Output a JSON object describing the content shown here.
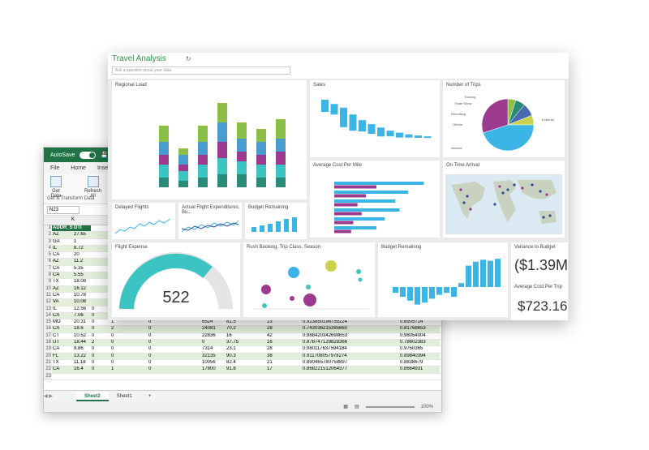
{
  "excel": {
    "autosave_label": "AutoSave",
    "toggle_label": "On",
    "tabs": [
      "File",
      "Home",
      "Insert"
    ],
    "ribbon": {
      "get_data": "Get\nData",
      "refresh_all": "Refresh\nAll",
      "group_label": "Get & Transform Data"
    },
    "namebox": "N23",
    "col_headers": [
      "K"
    ],
    "header_row": {
      "rn": "1",
      "cells": [
        "ADDR_STATE",
        "DTI"
      ]
    },
    "rows": [
      {
        "rn": "2",
        "cells": [
          "AZ",
          "27.65",
          "",
          "",
          "",
          "",
          "",
          "",
          ""
        ]
      },
      {
        "rn": "3",
        "cells": [
          "GA",
          "1",
          "",
          "",
          "",
          "",
          "",
          "",
          ""
        ]
      },
      {
        "rn": "4",
        "cells": [
          "IL",
          "8.72",
          "",
          "",
          "",
          "",
          "",
          "",
          ""
        ]
      },
      {
        "rn": "5",
        "cells": [
          "CA",
          "20",
          "",
          "",
          "",
          "",
          "",
          "",
          ""
        ]
      },
      {
        "rn": "6",
        "cells": [
          "AZ",
          "11.2",
          "",
          "",
          "",
          "",
          "",
          "",
          ""
        ]
      },
      {
        "rn": "7",
        "cells": [
          "CA",
          "5.35",
          "",
          "",
          "",
          "",
          "",
          "",
          ""
        ]
      },
      {
        "rn": "8",
        "cells": [
          "CA",
          "5.55",
          "",
          "",
          "",
          "",
          "",
          "",
          ""
        ]
      },
      {
        "rn": "9",
        "cells": [
          "TX",
          "18.08",
          "",
          "",
          "",
          "",
          "",
          "",
          ""
        ]
      },
      {
        "rn": "10",
        "cells": [
          "AZ",
          "16.12",
          "",
          "",
          "",
          "",
          "",
          "",
          ""
        ]
      },
      {
        "rn": "11",
        "cells": [
          "CA",
          "10.78",
          "",
          "",
          "",
          "",
          "",
          "",
          ""
        ]
      },
      {
        "rn": "12",
        "cells": [
          "VA",
          "10.08",
          "",
          "",
          "",
          "",
          "",
          "",
          ""
        ]
      },
      {
        "rn": "13",
        "cells": [
          "IL",
          "12.56",
          "0",
          "2",
          "0",
          "7523",
          "65.1",
          "11",
          "0.835299816036672"
        ]
      },
      {
        "rn": "14",
        "cells": [
          "CA",
          "7.06",
          "0",
          "2",
          "0",
          "12997",
          "53.3",
          "29",
          "0.921813084422236"
        ]
      },
      {
        "rn": "15",
        "cells": [
          "MO",
          "20.31",
          "0",
          "1",
          "0",
          "6524",
          "81.5",
          "23",
          "0.923850196759224"
        ]
      },
      {
        "rn": "16",
        "cells": [
          "CA",
          "18.6",
          "0",
          "2",
          "0",
          "24081",
          "70.2",
          "28",
          "0.743036215395660"
        ]
      },
      {
        "rn": "17",
        "cells": [
          "CT",
          "10.52",
          "0",
          "0",
          "0",
          "22836",
          "16",
          "42",
          "0.988420342698653"
        ]
      },
      {
        "rn": "18",
        "cells": [
          "UT",
          "18.44",
          "2",
          "0",
          "0",
          "0",
          "37.75",
          "16",
          "0.878747129828366"
        ]
      },
      {
        "rn": "19",
        "cells": [
          "CA",
          "9.86",
          "0",
          "0",
          "0",
          "7314",
          "23.1",
          "28",
          "0.980117637594184"
        ]
      },
      {
        "rn": "20",
        "cells": [
          "FL",
          "13.22",
          "0",
          "0",
          "0",
          "32135",
          "90.3",
          "38",
          "0.911708057978274"
        ]
      },
      {
        "rn": "21",
        "cells": [
          "TX",
          "11.18",
          "0",
          "0",
          "0",
          "10056",
          "82.4",
          "21",
          "0.890465780758897"
        ]
      },
      {
        "rn": "22",
        "cells": [
          "CA",
          "16.4",
          "0",
          "1",
          "0",
          "17800",
          "91.8",
          "17",
          "0.868221512064377"
        ]
      },
      {
        "rn": "23",
        "cells": [
          "",
          "",
          "",
          "",
          "",
          "",
          "",
          "",
          ""
        ]
      }
    ],
    "extra_col": [
      "0.84910877",
      "0.9658826",
      "0.6905724",
      "0.81768653",
      "0.98054004",
      "0.78602383",
      "0.9750365",
      "0.89840394",
      "0.8838679",
      "0.8664931"
    ],
    "sheets": [
      "Sheet2",
      "Sheet1"
    ],
    "add_sheet": "+",
    "zoom": "100%"
  },
  "pbi": {
    "title": "Travel Analysis",
    "qa_placeholder": "Ask a question about your data",
    "tiles": {
      "regional_load": {
        "title": "Regional Load"
      },
      "sales": {
        "title": "Sales"
      },
      "trips": {
        "title": "Number of Trips",
        "labels": [
          "Training",
          "Trade Show",
          "Recruiting",
          "Others",
          "External",
          "Internal"
        ]
      },
      "cost_mile": {
        "title": "Average Cost Per Mile"
      },
      "on_time": {
        "title": "On Time Arrival"
      },
      "delayed": {
        "title": "Delayed Flights"
      },
      "actual_flight": {
        "title": "Actual Flight Expenditures, Bu..."
      },
      "budget_small": {
        "title": "Budget Remaining"
      },
      "flight_expense": {
        "title": "Flight Expense",
        "value": "522"
      },
      "rush": {
        "title": "Rush Booking, Trip Class, Season"
      },
      "budget_big": {
        "title": "Budget Remaining"
      },
      "variance": {
        "title": "Variance to Budget",
        "value": "($1.39M)"
      },
      "avg_trip": {
        "title": "Average Cost Per Trip",
        "value": "$723.16"
      }
    },
    "colors": {
      "teal": "#3cc4c2",
      "purple": "#9b3a8e",
      "green": "#8bbf48",
      "dark_teal": "#2a8a78",
      "blue": "#3ab5e6",
      "brand": "#217346"
    }
  },
  "chart_data": [
    {
      "type": "bar",
      "title": "Regional Load",
      "categories": [
        "1",
        "2",
        "3",
        "4",
        "5",
        "6",
        "7"
      ],
      "series": [
        {
          "values": [
            3,
            2,
            3,
            4,
            4,
            3,
            3
          ]
        },
        {
          "values": [
            4,
            3,
            4,
            5,
            4,
            4,
            4
          ]
        },
        {
          "values": [
            3,
            2,
            3,
            5,
            3,
            3,
            4
          ]
        },
        {
          "values": [
            4,
            3,
            4,
            6,
            4,
            4,
            4
          ]
        },
        {
          "values": [
            5,
            2,
            5,
            6,
            5,
            4,
            6
          ]
        }
      ]
    },
    {
      "type": "bar",
      "title": "Sales",
      "categories": [
        "1",
        "2",
        "3",
        "4",
        "5",
        "6",
        "7",
        "8",
        "9",
        "10",
        "11",
        "12"
      ],
      "values": [
        30,
        26,
        48,
        40,
        28,
        24,
        22,
        14,
        12,
        8,
        6,
        4
      ]
    },
    {
      "type": "pie",
      "title": "Number of Trips",
      "categories": [
        "Training",
        "Trade Show",
        "Recruiting",
        "Others",
        "External",
        "Internal"
      ],
      "values": [
        5,
        6,
        8,
        6,
        45,
        30
      ]
    },
    {
      "type": "bar",
      "title": "Average Cost Per Mile",
      "series": [
        {
          "values": [
            85,
            70,
            58,
            62,
            48,
            40
          ]
        },
        {
          "values": [
            40,
            30,
            22,
            26,
            18,
            16
          ]
        }
      ]
    },
    {
      "type": "bar",
      "title": "Budget Remaining",
      "values": [
        -6,
        -10,
        -14,
        -18,
        -16,
        -12,
        -8,
        -6,
        -10,
        4,
        22,
        26,
        28,
        27,
        29
      ]
    }
  ]
}
